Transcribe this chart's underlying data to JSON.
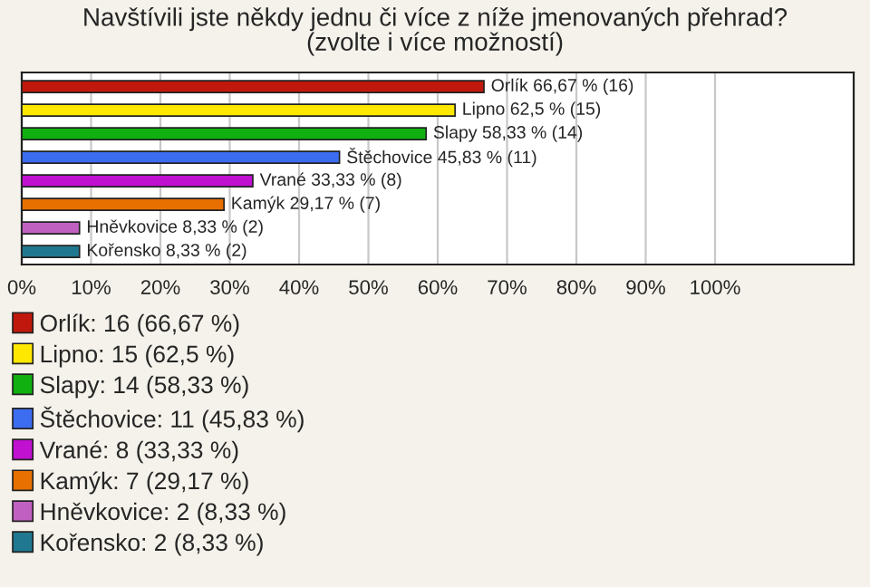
{
  "chart_data": {
    "type": "bar",
    "orientation": "horizontal",
    "title": "Navštívili jste někdy jednu či více z níže jmenovaných přehrad?\n(zvolte i více možností)",
    "categories": [
      null,
      null,
      null,
      null,
      null,
      null,
      null,
      null
    ],
    "series": [
      {
        "name": "Orlík: 16 (66,67 %)",
        "color": "#c0180c",
        "values": [
          66.67,
          null,
          null,
          null,
          null,
          null,
          null,
          null
        ],
        "value_labels": [
          "Orlík 66,67 % (16)",
          null,
          null,
          null,
          null,
          null,
          null,
          null
        ]
      },
      {
        "name": "Lipno: 15 (62,5 %)",
        "color": "#ffe800",
        "values": [
          null,
          62.5,
          null,
          null,
          null,
          null,
          null,
          null
        ],
        "value_labels": [
          null,
          "Lipno 62,5 % (15)",
          null,
          null,
          null,
          null,
          null,
          null
        ]
      },
      {
        "name": "Slapy: 14 (58,33 %)",
        "color": "#10b010",
        "values": [
          null,
          null,
          58.33,
          null,
          null,
          null,
          null,
          null
        ],
        "value_labels": [
          null,
          null,
          "Slapy 58,33 % (14)",
          null,
          null,
          null,
          null,
          null
        ]
      },
      {
        "name": "Štěchovice: 11 (45,83 %)",
        "color": "#3c6cf0",
        "values": [
          null,
          null,
          null,
          45.83,
          null,
          null,
          null,
          null
        ],
        "value_labels": [
          null,
          null,
          null,
          "Štěchovice 45,83 % (11)",
          null,
          null,
          null,
          null
        ]
      },
      {
        "name": "Vrané: 8 (33,33 %)",
        "color": "#c010d0",
        "values": [
          null,
          null,
          null,
          null,
          33.33,
          null,
          null,
          null
        ],
        "value_labels": [
          null,
          null,
          null,
          null,
          "Vrané 33,33 % (8)",
          null,
          null,
          null
        ]
      },
      {
        "name": "Kamýk: 7 (29,17 %)",
        "color": "#e87000",
        "values": [
          null,
          null,
          null,
          null,
          null,
          29.17,
          null,
          null
        ],
        "value_labels": [
          null,
          null,
          null,
          null,
          null,
          "Kamýk 29,17 % (7)",
          null,
          null
        ]
      },
      {
        "name": "Hněvkovice: 2 (8,33 %)",
        "color": "#c060c0",
        "values": [
          null,
          null,
          null,
          null,
          null,
          null,
          8.33,
          null
        ],
        "value_labels": [
          null,
          null,
          null,
          null,
          null,
          null,
          "Hněvkovice 8,33 % (2)",
          null
        ]
      },
      {
        "name": "Kořensko: 2 (8,33 %)",
        "color": "#207890",
        "values": [
          null,
          null,
          null,
          null,
          null,
          null,
          null,
          8.33
        ],
        "value_labels": [
          null,
          null,
          null,
          null,
          null,
          null,
          null,
          "Kořensko 8,33 % (2)"
        ]
      }
    ],
    "xlim": [
      0,
      120
    ],
    "xticks": [
      {
        "value": 0,
        "label": "0%"
      },
      {
        "value": 10,
        "label": "10%"
      },
      {
        "value": 20,
        "label": "20%"
      },
      {
        "value": 30,
        "label": "30%"
      },
      {
        "value": 40,
        "label": "40%"
      },
      {
        "value": 50,
        "label": "50%"
      },
      {
        "value": 60,
        "label": "60%"
      },
      {
        "value": 70,
        "label": "70%"
      },
      {
        "value": 80,
        "label": "80%"
      },
      {
        "value": 90,
        "label": "90%"
      },
      {
        "value": 100,
        "label": "100%"
      }
    ],
    "grid": "x",
    "legend": "bottom",
    "tick_labels": "x"
  }
}
